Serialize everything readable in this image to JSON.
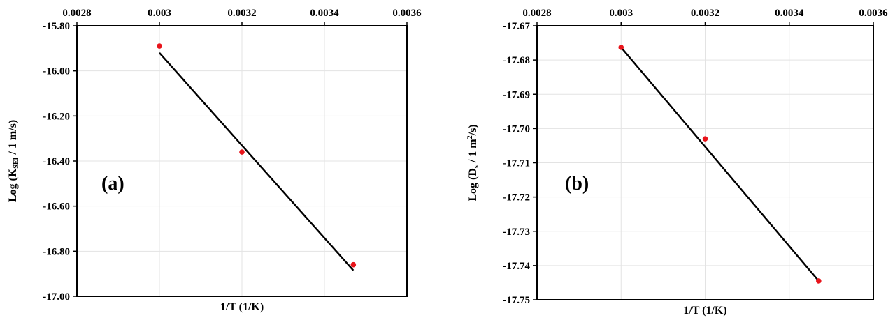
{
  "chart_data": [
    {
      "type": "scatter",
      "panel_label": "(a)",
      "xlabel": "1/T (1/K)",
      "ylabel_parts": [
        "Log (K",
        "SEI",
        " / 1 m/s)"
      ],
      "xlim": [
        0.0028,
        0.0036
      ],
      "ylim": [
        -17.0,
        -15.8
      ],
      "x_ticks": [
        0.0028,
        0.003,
        0.0032,
        0.0034,
        0.0036
      ],
      "x_tick_labels": [
        "0.0028",
        "0.003",
        "0.0032",
        "0.0034",
        "0.0036"
      ],
      "y_ticks": [
        -15.8,
        -16.0,
        -16.2,
        -16.4,
        -16.6,
        -16.8,
        -17.0
      ],
      "y_tick_labels": [
        "-15.80",
        "-16.00",
        "-16.20",
        "-16.40",
        "-16.60",
        "-16.80",
        "-17.00"
      ],
      "x_axis_position": "top",
      "grid": true,
      "points": {
        "x": [
          0.003,
          0.0032,
          0.00347
        ],
        "y": [
          -15.89,
          -16.36,
          -16.86
        ],
        "color": "#e8141b"
      },
      "fit_line": {
        "x": [
          0.003,
          0.00347
        ],
        "y": [
          -15.92,
          -16.885
        ],
        "color": "#000000"
      }
    },
    {
      "type": "scatter",
      "panel_label": "(b)",
      "xlabel": "1/T (1/K)",
      "ylabel_parts": [
        "Log (D",
        "s",
        " / 1 m",
        "2",
        "/s)"
      ],
      "xlim": [
        0.0028,
        0.0036
      ],
      "ylim": [
        -17.75,
        -17.67
      ],
      "x_ticks": [
        0.0028,
        0.003,
        0.0032,
        0.0034,
        0.0036
      ],
      "x_tick_labels": [
        "0.0028",
        "0.003",
        "0.0032",
        "0.0034",
        "0.0036"
      ],
      "y_ticks": [
        -17.67,
        -17.68,
        -17.69,
        -17.7,
        -17.71,
        -17.72,
        -17.73,
        -17.74,
        -17.75
      ],
      "y_tick_labels": [
        "-17.67",
        "-17.68",
        "-17.69",
        "-17.70",
        "-17.71",
        "-17.72",
        "-17.73",
        "-17.74",
        "-17.75"
      ],
      "x_axis_position": "top",
      "grid": true,
      "points": {
        "x": [
          0.003,
          0.0032,
          0.00347
        ],
        "y": [
          -17.6763,
          -17.703,
          -17.7445
        ],
        "color": "#e8141b"
      },
      "fit_line": {
        "x": [
          0.003,
          0.00347
        ],
        "y": [
          -17.6763,
          -17.7445
        ],
        "color": "#000000"
      }
    }
  ]
}
